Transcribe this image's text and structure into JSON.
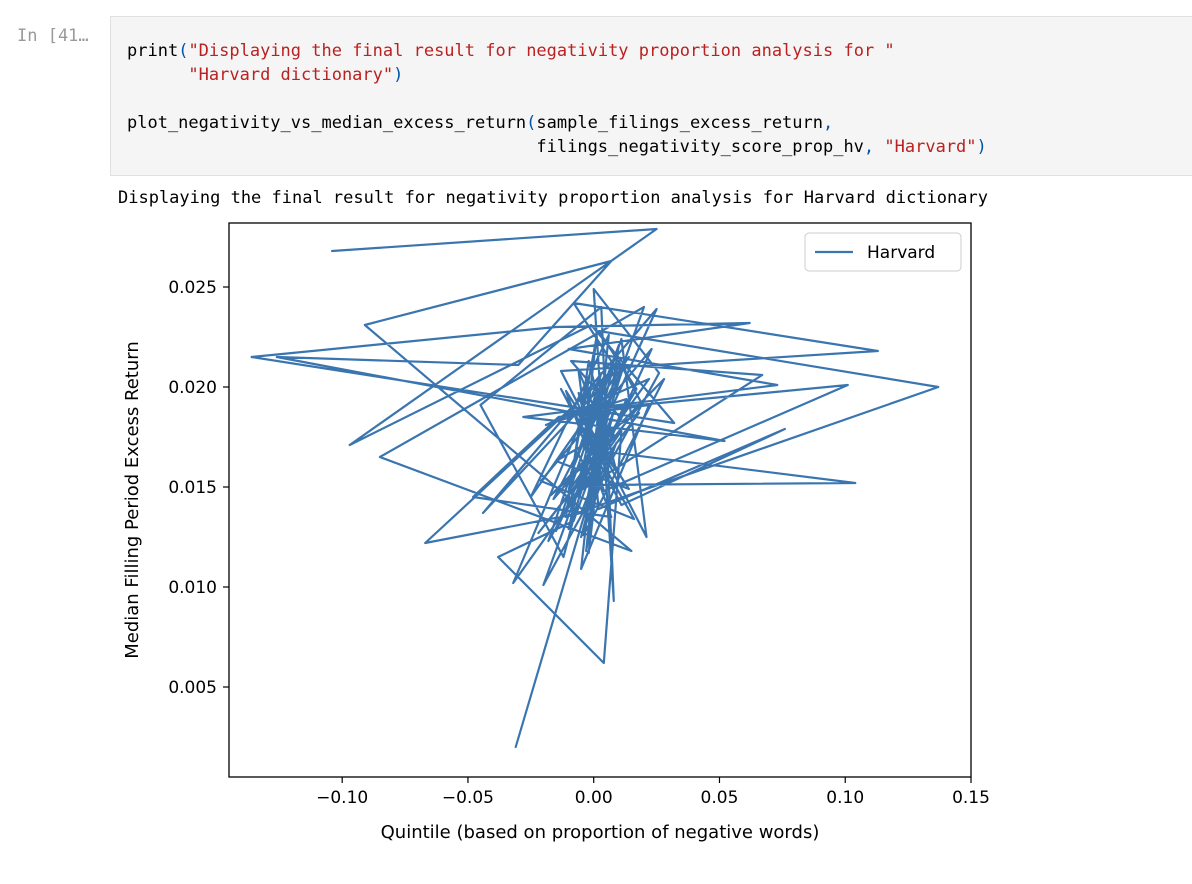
{
  "cell": {
    "prompt": "In [41…",
    "code_lines": [
      [
        {
          "t": "print",
          "c": "plain"
        },
        {
          "t": "(",
          "c": "paren"
        },
        {
          "t": "\"Displaying the final result for negativity proportion analysis for \"",
          "c": "str"
        }
      ],
      [
        {
          "t": "      ",
          "c": "plain"
        },
        {
          "t": "\"Harvard dictionary\"",
          "c": "str"
        },
        {
          "t": ")",
          "c": "paren"
        }
      ],
      [],
      [
        {
          "t": "plot_negativity_vs_median_excess_return",
          "c": "plain"
        },
        {
          "t": "(",
          "c": "paren"
        },
        {
          "t": "sample_filings_excess_return",
          "c": "plain"
        },
        {
          "t": ",",
          "c": "paren"
        }
      ],
      [
        {
          "t": "                                        filings_negativity_score_prop_hv",
          "c": "plain"
        },
        {
          "t": ", ",
          "c": "paren"
        },
        {
          "t": "\"Harvard\"",
          "c": "str"
        },
        {
          "t": ")",
          "c": "paren"
        }
      ]
    ],
    "output_text": "Displaying the final result for negativity proportion analysis for Harvard dictionary"
  },
  "chart_data": {
    "type": "line",
    "title": "",
    "xlabel": "Quintile (based on proportion of negative words)",
    "ylabel": "Median Filling Period Excess Return",
    "xlim": [
      -0.145,
      0.15
    ],
    "ylim": [
      0.0005,
      0.0282
    ],
    "xticks": [
      "−0.10",
      "−0.05",
      "0.00",
      "0.05",
      "0.10",
      "0.15"
    ],
    "xtick_values": [
      -0.1,
      -0.05,
      0.0,
      0.05,
      0.1,
      0.15
    ],
    "yticks": [
      "0.005",
      "0.010",
      "0.015",
      "0.020",
      "0.025"
    ],
    "ytick_values": [
      0.005,
      0.01,
      0.015,
      0.02,
      0.025
    ],
    "legend_position": "upper right",
    "grid": false,
    "series": [
      {
        "name": "Harvard",
        "color": "#3a75b0",
        "x": [
          -0.104,
          0.025,
          -0.097,
          -0.001,
          0.032,
          -0.136,
          -0.015,
          0.062,
          -0.01,
          0.073,
          -0.028,
          0.052,
          -0.126,
          -0.03,
          0.007,
          -0.091,
          0.015,
          -0.085,
          0.02,
          -0.02,
          0.026,
          0.0,
          0.008,
          0.003,
          -0.045,
          -0.012,
          0.008,
          -0.008,
          0.113,
          -0.013,
          0.021,
          0.011,
          -0.015,
          0.025,
          -0.044,
          0.014,
          -0.025,
          0.006,
          -0.003,
          0.01,
          -0.009,
          0.004,
          -0.018,
          0.017,
          0.002,
          0.137,
          -0.011,
          -0.002,
          0.009,
          -0.007,
          0.101,
          0.004,
          -0.006,
          0.008,
          -0.004,
          0.067,
          -0.009,
          0.011,
          -0.016,
          0.012,
          -0.001,
          -0.006,
          0.006,
          -0.022,
          0.019,
          0.01,
          -0.002,
          0.104,
          -0.004,
          0.001,
          -0.01,
          0.022,
          -0.019,
          0.013,
          -0.005,
          -0.067,
          0.007,
          -0.008,
          -0.003,
          0.002,
          0.076,
          0.011,
          -0.013,
          0.016,
          -0.021,
          0.023,
          0.006,
          -0.017,
          0.028,
          -0.004,
          0.005,
          -0.001,
          0.007,
          -0.011,
          0.018,
          -0.015,
          0.014,
          -0.011,
          0.007,
          -0.048,
          -0.014,
          0.022,
          -0.005,
          0.003,
          -0.01,
          0.004,
          0.002,
          -0.006,
          0.003,
          -0.032,
          0.011,
          0.004,
          -0.038,
          -0.008,
          0.008,
          -0.005,
          0.009,
          -0.003,
          0.005,
          -0.002,
          0.001,
          -0.031
        ],
        "y": [
          0.0268,
          0.0279,
          0.0171,
          0.0231,
          0.0182,
          0.0215,
          0.023,
          0.0232,
          0.0219,
          0.0201,
          0.0185,
          0.0173,
          0.0215,
          0.0211,
          0.0263,
          0.0231,
          0.0118,
          0.0165,
          0.024,
          0.0101,
          0.0207,
          0.0249,
          0.0093,
          0.024,
          0.0191,
          0.0115,
          0.0211,
          0.0242,
          0.0218,
          0.0208,
          0.0125,
          0.0224,
          0.0128,
          0.0239,
          0.0137,
          0.0215,
          0.0145,
          0.0226,
          0.0118,
          0.0221,
          0.0157,
          0.0205,
          0.0123,
          0.0199,
          0.0228,
          0.02,
          0.0135,
          0.0213,
          0.0158,
          0.0188,
          0.0201,
          0.0148,
          0.0197,
          0.0176,
          0.0149,
          0.0206,
          0.0213,
          0.0184,
          0.0144,
          0.0211,
          0.0159,
          0.0208,
          0.0172,
          0.0127,
          0.0192,
          0.0213,
          0.0151,
          0.0152,
          0.0169,
          0.0224,
          0.0148,
          0.0204,
          0.0181,
          0.0194,
          0.0137,
          0.0122,
          0.0208,
          0.016,
          0.0202,
          0.0139,
          0.0179,
          0.0141,
          0.0199,
          0.0134,
          0.0153,
          0.0219,
          0.0172,
          0.0146,
          0.0204,
          0.0126,
          0.0212,
          0.0152,
          0.0196,
          0.0138,
          0.0187,
          0.0163,
          0.0149,
          0.0198,
          0.0135,
          0.0145,
          0.0185,
          0.0191,
          0.0109,
          0.0201,
          0.0129,
          0.0181,
          0.0149,
          0.0166,
          0.0207,
          0.0102,
          0.0178,
          0.0062,
          0.0115,
          0.0133,
          0.0188,
          0.0125,
          0.0172,
          0.0141,
          0.0193,
          0.0117,
          0.0156,
          0.002
        ]
      }
    ]
  }
}
